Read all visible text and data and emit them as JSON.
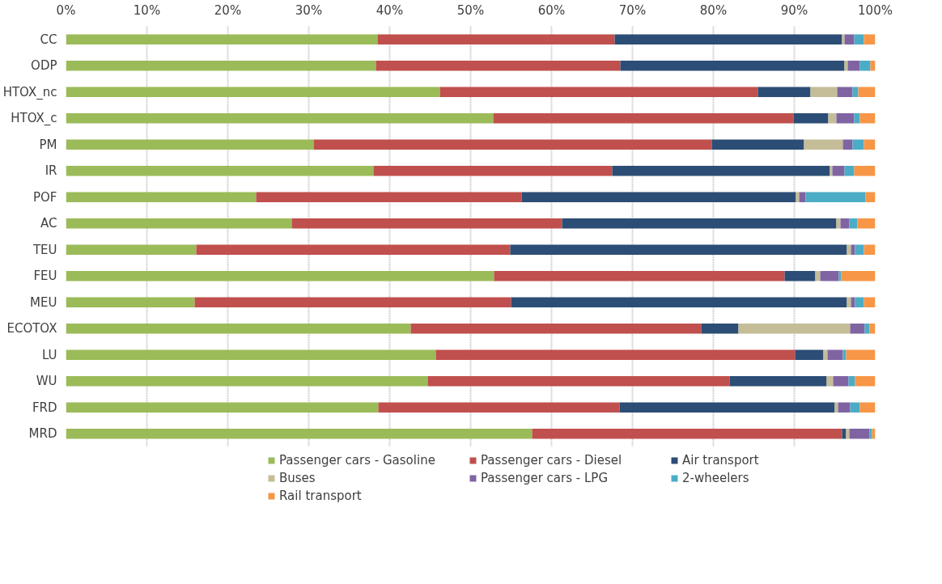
{
  "chart_data": {
    "type": "bar",
    "orientation": "horizontal",
    "stacked": true,
    "categories": [
      "CC",
      "ODP",
      "HTOX_nc",
      "HTOX_c",
      "PM",
      "IR",
      "POF",
      "AC",
      "TEU",
      "FEU",
      "MEU",
      "ECOTOX",
      "LU",
      "WU",
      "FRD",
      "MRD"
    ],
    "series": [
      {
        "name": "Passenger cars - Gasoline",
        "color": "#9bbb59",
        "values": [
          38.5,
          38.3,
          46.2,
          52.8,
          30.6,
          38.0,
          23.5,
          27.9,
          16.1,
          52.9,
          15.9,
          42.6,
          45.7,
          44.7,
          38.6,
          57.6
        ]
      },
      {
        "name": "Passenger cars - Diesel",
        "color": "#c0504d",
        "values": [
          29.3,
          30.2,
          39.3,
          37.1,
          49.2,
          29.5,
          32.8,
          33.4,
          38.8,
          35.9,
          39.1,
          35.9,
          44.4,
          37.3,
          29.8,
          38.3
        ]
      },
      {
        "name": "Air transport",
        "color": "#2c4d75",
        "values": [
          28.1,
          27.7,
          6.5,
          4.3,
          11.4,
          26.9,
          33.9,
          33.9,
          41.6,
          3.8,
          41.5,
          4.6,
          3.5,
          12.0,
          26.6,
          0.5
        ]
      },
      {
        "name": "Buses",
        "color": "#c4bd97",
        "values": [
          0.3,
          0.4,
          3.3,
          1.0,
          4.8,
          0.3,
          0.4,
          0.5,
          0.5,
          0.6,
          0.5,
          13.8,
          0.5,
          0.8,
          0.4,
          0.4
        ]
      },
      {
        "name": "Passenger cars - LPG",
        "color": "#8064a2",
        "values": [
          1.2,
          1.5,
          1.9,
          2.2,
          1.2,
          1.5,
          0.8,
          1.1,
          0.5,
          2.3,
          0.5,
          1.8,
          1.9,
          1.9,
          1.5,
          2.5
        ]
      },
      {
        "name": "2-wheelers",
        "color": "#4bacc6",
        "values": [
          1.2,
          1.3,
          0.7,
          0.7,
          1.4,
          1.2,
          7.4,
          1.0,
          1.1,
          0.3,
          1.1,
          0.6,
          0.4,
          0.8,
          1.2,
          0.3
        ]
      },
      {
        "name": "Rail transport",
        "color": "#f79646",
        "values": [
          1.4,
          0.6,
          2.1,
          1.9,
          1.4,
          2.6,
          1.2,
          2.2,
          1.4,
          4.2,
          1.4,
          0.7,
          3.6,
          2.5,
          1.9,
          0.4
        ]
      }
    ],
    "xlim": [
      0,
      100
    ],
    "xticks": [
      {
        "value": 0,
        "label": "0%"
      },
      {
        "value": 10,
        "label": "10%"
      },
      {
        "value": 20,
        "label": "20%"
      },
      {
        "value": 30,
        "label": "30%"
      },
      {
        "value": 40,
        "label": "40%"
      },
      {
        "value": 50,
        "label": "50%"
      },
      {
        "value": 60,
        "label": "60%"
      },
      {
        "value": 70,
        "label": "70%"
      },
      {
        "value": 80,
        "label": "80%"
      },
      {
        "value": 90,
        "label": "90%"
      },
      {
        "value": 100,
        "label": "100%"
      }
    ],
    "grid": "x",
    "legend": "bottom"
  }
}
